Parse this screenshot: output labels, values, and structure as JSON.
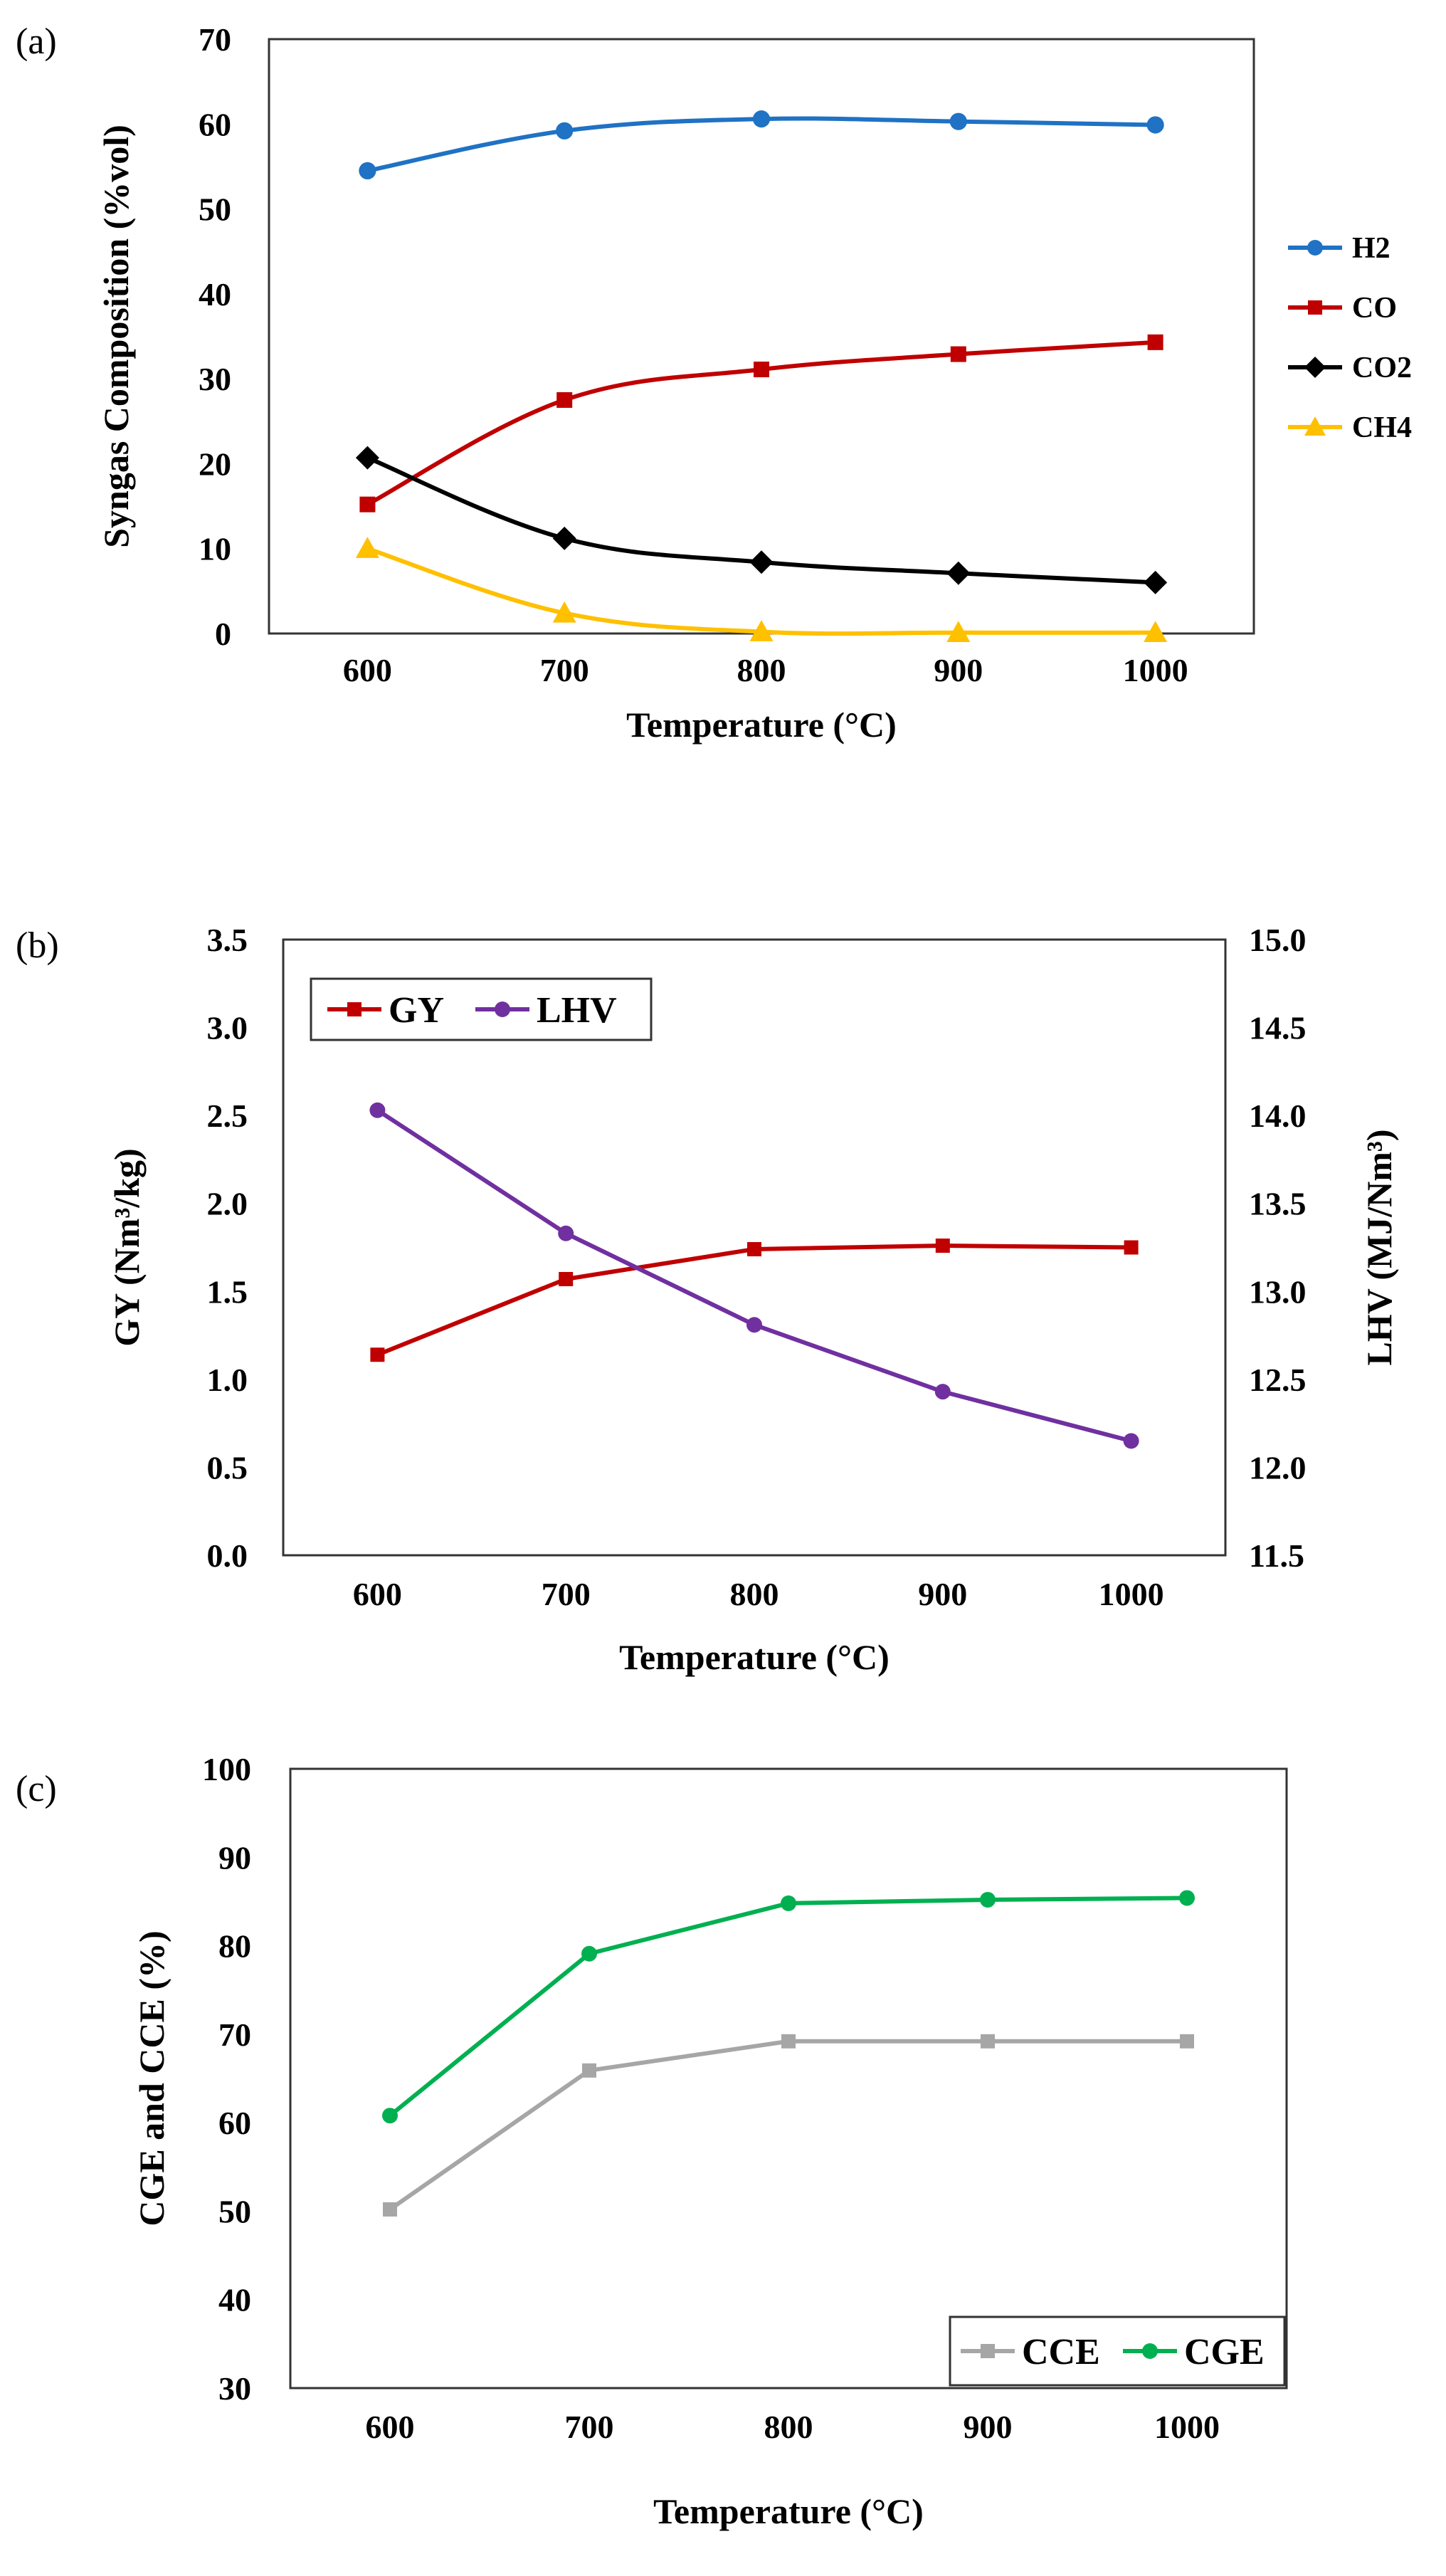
{
  "chart_data": [
    {
      "panel_label": "(a)",
      "type": "line",
      "x": [
        600,
        700,
        800,
        900,
        1000
      ],
      "xlabel": "Temperature (°C)",
      "ylabel": "Syngas Composition (%vol)",
      "ylim": [
        0,
        70
      ],
      "yticks": [
        "0",
        "10",
        "20",
        "30",
        "40",
        "50",
        "60",
        "70"
      ],
      "xticks": [
        "600",
        "700",
        "800",
        "900",
        "1000"
      ],
      "legend_position": "right",
      "series": [
        {
          "name": "H2",
          "color": "#1f72c4",
          "marker": "circle",
          "values": [
            54.5,
            59.2,
            60.6,
            60.3,
            59.9
          ]
        },
        {
          "name": "CO",
          "color": "#c00000",
          "marker": "square",
          "values": [
            15.2,
            27.5,
            31.1,
            32.9,
            34.3
          ]
        },
        {
          "name": "CO2",
          "color": "#000000",
          "marker": "diamond",
          "values": [
            20.7,
            11.2,
            8.4,
            7.1,
            6.0
          ]
        },
        {
          "name": "CH4",
          "color": "#ffc000",
          "marker": "triangle",
          "values": [
            10.0,
            2.4,
            0.2,
            0.1,
            0.1
          ]
        }
      ]
    },
    {
      "panel_label": "(b)",
      "type": "line",
      "x": [
        600,
        700,
        800,
        900,
        1000
      ],
      "xlabel": "Temperature (°C)",
      "ylabel": "GY (Nm³/kg)",
      "ylabel_right": "LHV (MJ/Nm³)",
      "ylim": [
        0,
        3.5
      ],
      "ylim_right": [
        11.5,
        15.0
      ],
      "yticks": [
        "0.0",
        "0.5",
        "1.0",
        "1.5",
        "2.0",
        "2.5",
        "3.0",
        "3.5"
      ],
      "yticks_right": [
        "11.5",
        "12.0",
        "12.5",
        "13.0",
        "13.5",
        "14.0",
        "14.5",
        "15.0"
      ],
      "xticks": [
        "600",
        "700",
        "800",
        "900",
        "1000"
      ],
      "legend_position": "top-left",
      "series": [
        {
          "name": "GY",
          "axis": "left",
          "color": "#c00000",
          "marker": "square",
          "values": [
            1.14,
            1.57,
            1.74,
            1.76,
            1.75
          ]
        },
        {
          "name": "LHV",
          "axis": "right",
          "color": "#7030a0",
          "marker": "circle",
          "values": [
            14.03,
            13.33,
            12.81,
            12.43,
            12.15
          ]
        }
      ]
    },
    {
      "panel_label": "(c)",
      "type": "line",
      "x": [
        600,
        700,
        800,
        900,
        1000
      ],
      "xlabel": "Temperature (°C)",
      "ylabel": "CGE and CCE (%)",
      "ylim": [
        30,
        100
      ],
      "yticks": [
        "30",
        "40",
        "50",
        "60",
        "70",
        "80",
        "90",
        "100"
      ],
      "xticks": [
        "600",
        "700",
        "800",
        "900",
        "1000"
      ],
      "legend_position": "bottom-right",
      "series": [
        {
          "name": "CCE",
          "color": "#a6a6a6",
          "marker": "square",
          "values": [
            50.2,
            65.9,
            69.2,
            69.2,
            69.2
          ]
        },
        {
          "name": "CGE",
          "color": "#00b050",
          "marker": "circle",
          "values": [
            60.8,
            79.1,
            84.8,
            85.2,
            85.4
          ]
        }
      ]
    }
  ]
}
